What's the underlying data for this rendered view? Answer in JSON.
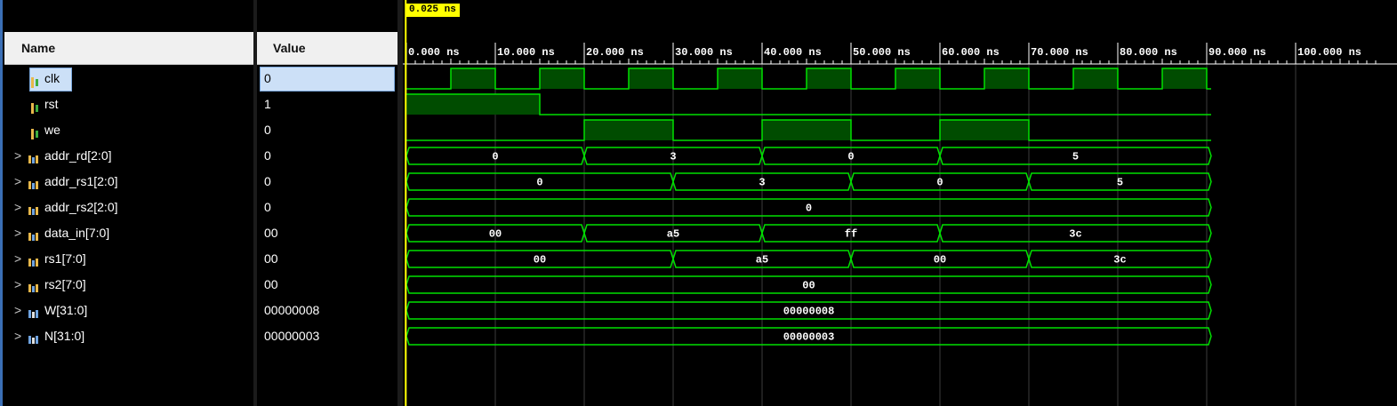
{
  "columns": {
    "name": "Name",
    "value": "Value"
  },
  "cursor": {
    "label": "0.025 ns",
    "time_ns": 0.025
  },
  "timeline": {
    "tick_labels": [
      "0.000 ns",
      "10.000 ns",
      "20.000 ns",
      "30.000 ns",
      "40.000 ns",
      "50.000 ns",
      "60.000 ns",
      "70.000 ns",
      "80.000 ns",
      "90.000 ns",
      "100.000 ns"
    ],
    "end_time_ns": 90.5
  },
  "colors": {
    "wave": "#00e000",
    "wave_fill": "#004c00",
    "cursor": "#ffff00",
    "text": "#ffffff"
  },
  "signals": [
    {
      "name": "clk",
      "value": "0",
      "type": "bit",
      "icon": "bit-signal-icon",
      "expandable": false,
      "selected": true,
      "levels": [
        [
          0,
          5,
          0
        ],
        [
          5,
          10,
          1
        ],
        [
          10,
          15,
          0
        ],
        [
          15,
          20,
          1
        ],
        [
          20,
          25,
          0
        ],
        [
          25,
          30,
          1
        ],
        [
          30,
          35,
          0
        ],
        [
          35,
          40,
          1
        ],
        [
          40,
          45,
          0
        ],
        [
          45,
          50,
          1
        ],
        [
          50,
          55,
          0
        ],
        [
          55,
          60,
          1
        ],
        [
          60,
          65,
          0
        ],
        [
          65,
          70,
          1
        ],
        [
          70,
          75,
          0
        ],
        [
          75,
          80,
          1
        ],
        [
          80,
          85,
          0
        ],
        [
          85,
          90,
          1
        ],
        [
          90,
          90.5,
          0
        ]
      ]
    },
    {
      "name": "rst",
      "value": "1",
      "type": "bit",
      "icon": "bit-signal-icon",
      "expandable": false,
      "levels": [
        [
          0,
          15,
          1
        ],
        [
          15,
          90.5,
          0
        ]
      ]
    },
    {
      "name": "we",
      "value": "0",
      "type": "bit",
      "icon": "bit-signal-icon",
      "expandable": false,
      "levels": [
        [
          0,
          20,
          0
        ],
        [
          20,
          30,
          1
        ],
        [
          30,
          40,
          0
        ],
        [
          40,
          50,
          1
        ],
        [
          50,
          60,
          0
        ],
        [
          60,
          70,
          1
        ],
        [
          70,
          90.5,
          0
        ]
      ]
    },
    {
      "name": "addr_rd[2:0]",
      "value": "0",
      "type": "bus",
      "icon": "bus-signal-icon",
      "expandable": true,
      "segments": [
        [
          0,
          20,
          "0"
        ],
        [
          20,
          40,
          "3"
        ],
        [
          40,
          60,
          "0"
        ],
        [
          60,
          90.5,
          "5"
        ]
      ]
    },
    {
      "name": "addr_rs1[2:0]",
      "value": "0",
      "type": "bus",
      "icon": "bus-signal-icon",
      "expandable": true,
      "segments": [
        [
          0,
          30,
          "0"
        ],
        [
          30,
          50,
          "3"
        ],
        [
          50,
          70,
          "0"
        ],
        [
          70,
          90.5,
          "5"
        ]
      ]
    },
    {
      "name": "addr_rs2[2:0]",
      "value": "0",
      "type": "bus",
      "icon": "bus-signal-icon",
      "expandable": true,
      "segments": [
        [
          0,
          90.5,
          "0"
        ]
      ]
    },
    {
      "name": "data_in[7:0]",
      "value": "00",
      "type": "bus",
      "icon": "bus-signal-icon",
      "expandable": true,
      "segments": [
        [
          0,
          20,
          "00"
        ],
        [
          20,
          40,
          "a5"
        ],
        [
          40,
          60,
          "ff"
        ],
        [
          60,
          90.5,
          "3c"
        ]
      ]
    },
    {
      "name": "rs1[7:0]",
      "value": "00",
      "type": "bus",
      "icon": "bus-signal-icon",
      "expandable": true,
      "segments": [
        [
          0,
          30,
          "00"
        ],
        [
          30,
          50,
          "a5"
        ],
        [
          50,
          70,
          "00"
        ],
        [
          70,
          90.5,
          "3c"
        ]
      ]
    },
    {
      "name": "rs2[7:0]",
      "value": "00",
      "type": "bus",
      "icon": "bus-signal-icon",
      "expandable": true,
      "segments": [
        [
          0,
          90.5,
          "00"
        ]
      ]
    },
    {
      "name": "W[31:0]",
      "value": "00000008",
      "type": "bus",
      "icon": "parameter-icon",
      "expandable": true,
      "segments": [
        [
          0,
          90.5,
          "00000008"
        ]
      ]
    },
    {
      "name": "N[31:0]",
      "value": "00000003",
      "type": "bus",
      "icon": "parameter-icon",
      "expandable": true,
      "segments": [
        [
          0,
          90.5,
          "00000003"
        ]
      ]
    }
  ]
}
